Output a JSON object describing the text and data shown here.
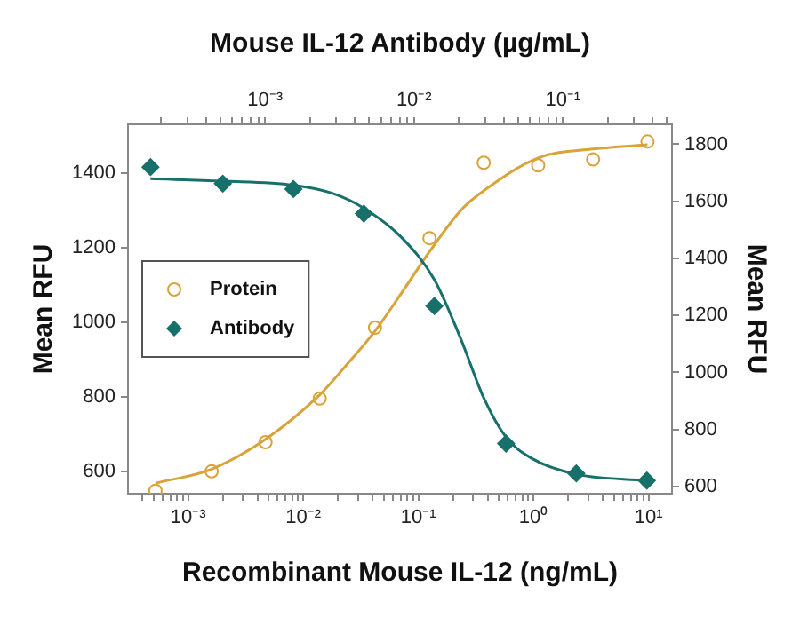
{
  "chart_data": [
    {
      "type": "scatter",
      "xlabel": "Recombinant Mouse IL-12 (ng/mL)",
      "ylabel": "Mean RFU",
      "log": "x",
      "grid": false,
      "legend": "left",
      "xlim": [
        0.00032,
        16
      ],
      "ylim": [
        540,
        1530
      ],
      "xticks": [
        {
          "value": 0.0004,
          "label": null
        },
        {
          "value": 0.0005,
          "label": null
        },
        {
          "value": 0.0006,
          "label": null
        },
        {
          "value": 0.0007,
          "label": null
        },
        {
          "value": 0.0008,
          "label": null
        },
        {
          "value": 0.0009,
          "label": null
        },
        {
          "value": 0.001,
          "label": "10⁻³"
        },
        {
          "value": 0.002,
          "label": null
        },
        {
          "value": 0.003,
          "label": null
        },
        {
          "value": 0.004,
          "label": null
        },
        {
          "value": 0.005,
          "label": null
        },
        {
          "value": 0.006,
          "label": null
        },
        {
          "value": 0.007,
          "label": null
        },
        {
          "value": 0.008,
          "label": null
        },
        {
          "value": 0.009,
          "label": null
        },
        {
          "value": 0.01,
          "label": "10⁻²"
        },
        {
          "value": 0.02,
          "label": null
        },
        {
          "value": 0.03,
          "label": null
        },
        {
          "value": 0.04,
          "label": null
        },
        {
          "value": 0.05,
          "label": null
        },
        {
          "value": 0.06,
          "label": null
        },
        {
          "value": 0.07,
          "label": null
        },
        {
          "value": 0.08,
          "label": null
        },
        {
          "value": 0.09,
          "label": null
        },
        {
          "value": 0.1,
          "label": "10⁻¹"
        },
        {
          "value": 0.2,
          "label": null
        },
        {
          "value": 0.3,
          "label": null
        },
        {
          "value": 0.4,
          "label": null
        },
        {
          "value": 0.5,
          "label": null
        },
        {
          "value": 0.6,
          "label": null
        },
        {
          "value": 0.7,
          "label": null
        },
        {
          "value": 0.8,
          "label": null
        },
        {
          "value": 0.9,
          "label": null
        },
        {
          "value": 1,
          "label": "10⁰"
        },
        {
          "value": 2,
          "label": null
        },
        {
          "value": 3,
          "label": null
        },
        {
          "value": 4,
          "label": null
        },
        {
          "value": 5,
          "label": null
        },
        {
          "value": 6,
          "label": null
        },
        {
          "value": 7,
          "label": null
        },
        {
          "value": 8,
          "label": null
        },
        {
          "value": 9,
          "label": null
        },
        {
          "value": 10,
          "label": "10¹"
        }
      ],
      "yticks": [
        600,
        800,
        1000,
        1200,
        1400
      ],
      "series": [
        {
          "name": "Protein",
          "type": "scatter",
          "marker": "circle",
          "color": "#d9a33a",
          "x": [
            0.00052,
            0.0016,
            0.0047,
            0.0139,
            0.042,
            0.125,
            0.37,
            1.1,
            3.3,
            9.8
          ],
          "values": [
            548,
            600,
            678,
            795,
            985,
            1225,
            1427,
            1420,
            1436,
            1484
          ]
        },
        {
          "type": "line",
          "marker": "none",
          "color": "#d9a33a",
          "x": [
            0.00052,
            0.0016,
            0.0047,
            0.0139,
            0.0236,
            0.042,
            0.076,
            0.125,
            0.243,
            0.37,
            1.1,
            3.3,
            9.8
          ],
          "values": [
            568,
            606,
            686,
            805,
            884,
            976,
            1090,
            1189,
            1305,
            1352,
            1440,
            1464,
            1475
          ]
        }
      ]
    },
    {
      "type": "scatter",
      "xlabel": "Mouse IL-12 Antibody (µg/mL)",
      "ylabel": "Mean RFU",
      "log": "x",
      "grid": false,
      "legend": "left",
      "xlim": [
        0.00012,
        0.54
      ],
      "ylim": [
        575,
        1870
      ],
      "xticks": [
        {
          "value": 0.0002,
          "label": null
        },
        {
          "value": 0.0003,
          "label": null
        },
        {
          "value": 0.0004,
          "label": null
        },
        {
          "value": 0.0005,
          "label": null
        },
        {
          "value": 0.0006,
          "label": null
        },
        {
          "value": 0.0007,
          "label": null
        },
        {
          "value": 0.0008,
          "label": null
        },
        {
          "value": 0.0009,
          "label": null
        },
        {
          "value": 0.001,
          "label": "10⁻³"
        },
        {
          "value": 0.002,
          "label": null
        },
        {
          "value": 0.003,
          "label": null
        },
        {
          "value": 0.004,
          "label": null
        },
        {
          "value": 0.005,
          "label": null
        },
        {
          "value": 0.006,
          "label": null
        },
        {
          "value": 0.007,
          "label": null
        },
        {
          "value": 0.008,
          "label": null
        },
        {
          "value": 0.009,
          "label": null
        },
        {
          "value": 0.01,
          "label": "10⁻²"
        },
        {
          "value": 0.02,
          "label": null
        },
        {
          "value": 0.03,
          "label": null
        },
        {
          "value": 0.04,
          "label": null
        },
        {
          "value": 0.05,
          "label": null
        },
        {
          "value": 0.06,
          "label": null
        },
        {
          "value": 0.07,
          "label": null
        },
        {
          "value": 0.08,
          "label": null
        },
        {
          "value": 0.09,
          "label": null
        },
        {
          "value": 0.1,
          "label": "10⁻¹"
        },
        {
          "value": 0.2,
          "label": null
        },
        {
          "value": 0.3,
          "label": null
        },
        {
          "value": 0.4,
          "label": null
        },
        {
          "value": 0.5,
          "label": null
        }
      ],
      "yticks": [
        600,
        800,
        1000,
        1200,
        1400,
        1600,
        1800
      ],
      "series": [
        {
          "name": "Antibody",
          "type": "scatter",
          "marker": "diamond",
          "color": "#17716a",
          "x": [
            0.00017,
            0.00052,
            0.00155,
            0.0046,
            0.0137,
            0.0415,
            0.123,
            0.366
          ],
          "values": [
            1720,
            1662,
            1643,
            1557,
            1233,
            751,
            646,
            621
          ]
        },
        {
          "type": "line",
          "marker": "none",
          "color": "#17716a",
          "x": [
            0.00017,
            0.00052,
            0.00155,
            0.0028,
            0.0046,
            0.0083,
            0.0137,
            0.0206,
            0.0295,
            0.0415,
            0.0612,
            0.123,
            0.366
          ],
          "values": [
            1679,
            1671,
            1657,
            1629,
            1576,
            1472,
            1325,
            1118,
            909,
            773,
            700,
            643,
            621
          ]
        }
      ]
    }
  ]
}
